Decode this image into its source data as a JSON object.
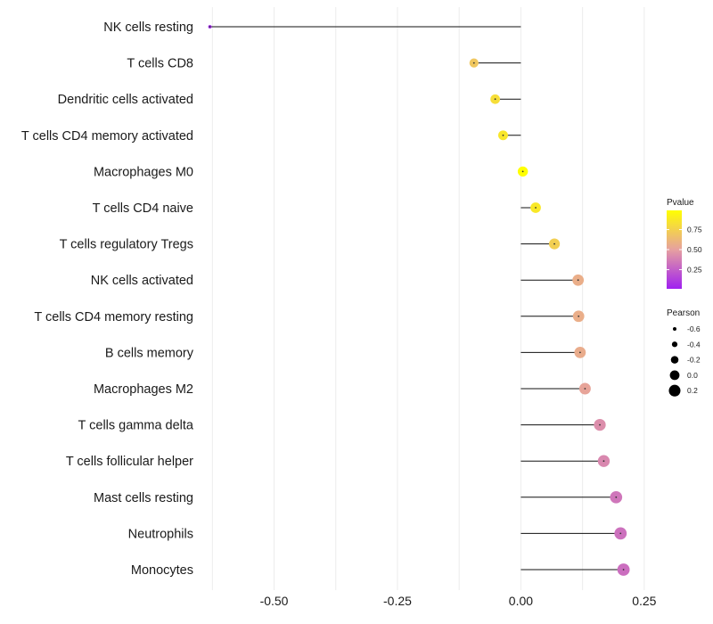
{
  "chart_data": {
    "type": "lollipop",
    "title": "",
    "xlabel": "",
    "ylabel": "",
    "xlim": [
      -0.64,
      0.29
    ],
    "xticks": [
      -0.5,
      -0.25,
      0.0,
      0.25
    ],
    "xtick_labels": [
      "-0.50",
      "-0.25",
      "0.00",
      "0.25"
    ],
    "grid": "vertical",
    "categories": [
      "NK cells resting",
      "T cells CD8",
      "Dendritic cells activated",
      "T cells CD4 memory activated",
      "Macrophages M0",
      "T cells CD4 naive",
      "T cells regulatory  Tregs ",
      "NK cells activated",
      "T cells CD4 memory resting",
      "B cells memory",
      "Macrophages M2",
      "T cells gamma delta",
      "T cells follicular helper",
      "Mast cells resting",
      "Neutrophils",
      "Monocytes"
    ],
    "pearson": [
      -0.63,
      -0.095,
      -0.052,
      -0.036,
      0.004,
      0.03,
      0.068,
      0.116,
      0.117,
      0.12,
      0.13,
      0.16,
      0.168,
      0.193,
      0.202,
      0.208
    ],
    "pvalue": [
      0.01,
      0.7,
      0.82,
      0.86,
      0.99,
      0.87,
      0.74,
      0.57,
      0.57,
      0.56,
      0.52,
      0.43,
      0.41,
      0.34,
      0.32,
      0.31
    ],
    "legend": {
      "color_title": "Pvalue",
      "color_ticks": [
        0.25,
        0.5,
        0.75
      ],
      "color_tick_labels": [
        "0.25",
        "0.50",
        "0.75"
      ],
      "color_range": [
        0.01,
        0.99
      ],
      "color_low": "#a020f0",
      "color_mid": "#e6a0a0",
      "color_high": "#ffff00",
      "size_title": "Pearson",
      "size_values": [
        -0.6,
        -0.4,
        -0.2,
        0.0,
        0.2
      ],
      "size_labels": [
        "-0.6",
        "-0.4",
        "-0.2",
        "0.0",
        "0.2"
      ],
      "placement": "right"
    }
  }
}
